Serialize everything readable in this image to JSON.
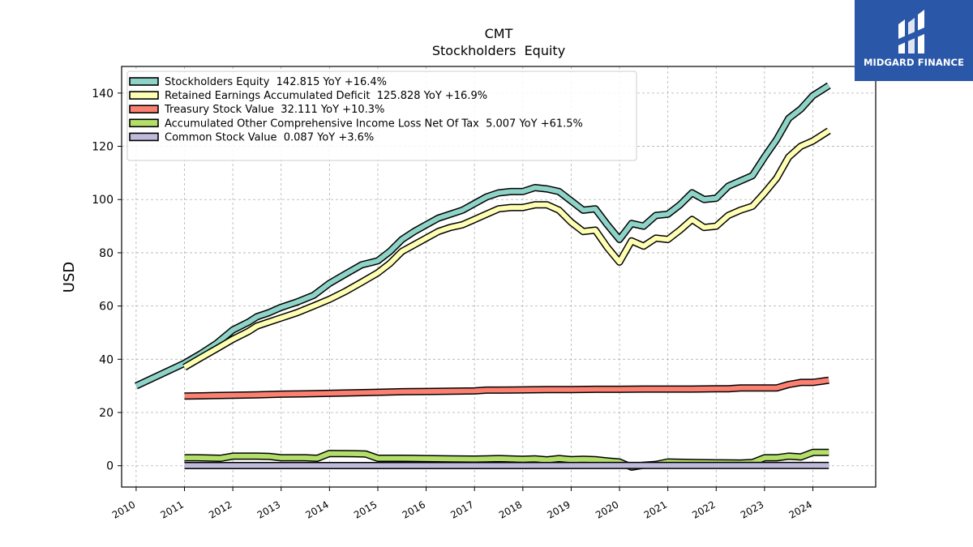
{
  "brand": {
    "name": "MIDGARD FINANCE",
    "bg_color": "#2a57a8"
  },
  "chart_data": {
    "type": "line",
    "title": "CMT",
    "subtitle": "Stockholders  Equity",
    "xlabel": "",
    "ylabel": "USD",
    "xlim": [
      2009.7,
      2025.3
    ],
    "ylim": [
      -8,
      150
    ],
    "yticks": [
      0,
      20,
      40,
      60,
      80,
      100,
      120,
      140
    ],
    "xticks": [
      2010,
      2011,
      2012,
      2013,
      2014,
      2015,
      2016,
      2017,
      2018,
      2019,
      2020,
      2021,
      2022,
      2023,
      2024
    ],
    "grid": true,
    "legend_position": "top-left",
    "series": [
      {
        "name": "Stockholders Equity",
        "legend": "Stockholders Equity  142.815 YoY +16.4%",
        "color": "#8dd3c7",
        "points": [
          [
            2010.0,
            30.0
          ],
          [
            2011.0,
            38.5
          ],
          [
            2011.33,
            42.0
          ],
          [
            2011.67,
            46.0
          ],
          [
            2012.0,
            51.0
          ],
          [
            2012.33,
            54.0
          ],
          [
            2012.5,
            56.0
          ],
          [
            2012.75,
            57.5
          ],
          [
            2013.0,
            59.5
          ],
          [
            2013.33,
            61.5
          ],
          [
            2013.67,
            64.0
          ],
          [
            2014.0,
            68.5
          ],
          [
            2014.33,
            72.0
          ],
          [
            2014.67,
            75.5
          ],
          [
            2014.9,
            76.5
          ],
          [
            2015.0,
            77.0
          ],
          [
            2015.25,
            80.5
          ],
          [
            2015.5,
            85.0
          ],
          [
            2015.75,
            88.0
          ],
          [
            2016.0,
            90.5
          ],
          [
            2016.25,
            93.0
          ],
          [
            2016.5,
            94.5
          ],
          [
            2016.75,
            96.0
          ],
          [
            2017.0,
            98.5
          ],
          [
            2017.25,
            101.0
          ],
          [
            2017.5,
            102.5
          ],
          [
            2017.75,
            103.0
          ],
          [
            2018.0,
            103.0
          ],
          [
            2018.25,
            104.5
          ],
          [
            2018.5,
            104.0
          ],
          [
            2018.75,
            103.0
          ],
          [
            2019.0,
            99.5
          ],
          [
            2019.25,
            96.0
          ],
          [
            2019.5,
            96.5
          ],
          [
            2019.75,
            90.5
          ],
          [
            2020.0,
            85.0
          ],
          [
            2020.25,
            91.0
          ],
          [
            2020.5,
            90.0
          ],
          [
            2020.75,
            94.0
          ],
          [
            2021.0,
            94.5
          ],
          [
            2021.25,
            98.0
          ],
          [
            2021.5,
            102.5
          ],
          [
            2021.75,
            100.0
          ],
          [
            2022.0,
            100.5
          ],
          [
            2022.25,
            105.0
          ],
          [
            2022.5,
            107.0
          ],
          [
            2022.75,
            109.0
          ],
          [
            2023.0,
            116.0
          ],
          [
            2023.25,
            122.5
          ],
          [
            2023.5,
            130.5
          ],
          [
            2023.75,
            134.0
          ],
          [
            2024.0,
            139.0
          ],
          [
            2024.33,
            142.815
          ]
        ]
      },
      {
        "name": "Retained Earnings Accumulated Deficit",
        "legend": "Retained Earnings Accumulated Deficit  125.828 YoY +16.9%",
        "color": "#ffffb3",
        "points": [
          [
            2011.0,
            37.0
          ],
          [
            2011.33,
            40.5
          ],
          [
            2011.67,
            44.0
          ],
          [
            2012.0,
            47.5
          ],
          [
            2012.33,
            50.5
          ],
          [
            2012.5,
            52.5
          ],
          [
            2012.75,
            54.0
          ],
          [
            2013.0,
            55.5
          ],
          [
            2013.33,
            57.5
          ],
          [
            2013.67,
            60.0
          ],
          [
            2014.0,
            62.5
          ],
          [
            2014.33,
            65.5
          ],
          [
            2014.67,
            69.0
          ],
          [
            2015.0,
            72.5
          ],
          [
            2015.25,
            76.0
          ],
          [
            2015.5,
            80.5
          ],
          [
            2015.75,
            83.0
          ],
          [
            2016.0,
            85.5
          ],
          [
            2016.25,
            88.0
          ],
          [
            2016.5,
            89.5
          ],
          [
            2016.75,
            90.5
          ],
          [
            2017.0,
            92.5
          ],
          [
            2017.25,
            94.5
          ],
          [
            2017.5,
            96.5
          ],
          [
            2017.75,
            97.0
          ],
          [
            2018.0,
            97.0
          ],
          [
            2018.25,
            98.0
          ],
          [
            2018.5,
            98.0
          ],
          [
            2018.75,
            96.0
          ],
          [
            2019.0,
            91.5
          ],
          [
            2019.25,
            88.0
          ],
          [
            2019.5,
            88.5
          ],
          [
            2019.75,
            82.0
          ],
          [
            2020.0,
            76.5
          ],
          [
            2020.25,
            84.5
          ],
          [
            2020.5,
            82.5
          ],
          [
            2020.75,
            85.5
          ],
          [
            2021.0,
            85.0
          ],
          [
            2021.25,
            88.5
          ],
          [
            2021.5,
            92.5
          ],
          [
            2021.75,
            89.5
          ],
          [
            2022.0,
            90.0
          ],
          [
            2022.25,
            94.0
          ],
          [
            2022.5,
            96.0
          ],
          [
            2022.75,
            97.5
          ],
          [
            2023.0,
            102.5
          ],
          [
            2023.25,
            108.0
          ],
          [
            2023.5,
            116.0
          ],
          [
            2023.75,
            120.0
          ],
          [
            2024.0,
            122.0
          ],
          [
            2024.33,
            125.828
          ]
        ]
      },
      {
        "name": "Treasury Stock Value",
        "legend": "Treasury Stock Value  32.111 YoY +10.3%",
        "color": "#fb8072",
        "points": [
          [
            2011.0,
            26.2
          ],
          [
            2011.5,
            26.3
          ],
          [
            2012.0,
            26.5
          ],
          [
            2012.5,
            26.6
          ],
          [
            2013.0,
            26.9
          ],
          [
            2013.5,
            27.0
          ],
          [
            2014.0,
            27.2
          ],
          [
            2014.5,
            27.4
          ],
          [
            2015.0,
            27.6
          ],
          [
            2015.5,
            27.8
          ],
          [
            2016.0,
            27.9
          ],
          [
            2016.5,
            28.0
          ],
          [
            2017.0,
            28.1
          ],
          [
            2017.25,
            28.4
          ],
          [
            2017.5,
            28.4
          ],
          [
            2018.0,
            28.5
          ],
          [
            2018.5,
            28.6
          ],
          [
            2019.0,
            28.6
          ],
          [
            2019.5,
            28.7
          ],
          [
            2020.0,
            28.7
          ],
          [
            2020.5,
            28.8
          ],
          [
            2021.0,
            28.8
          ],
          [
            2021.5,
            28.8
          ],
          [
            2022.0,
            28.9
          ],
          [
            2022.25,
            28.9
          ],
          [
            2022.5,
            29.2
          ],
          [
            2023.0,
            29.2
          ],
          [
            2023.25,
            29.2
          ],
          [
            2023.5,
            30.5
          ],
          [
            2023.75,
            31.3
          ],
          [
            2024.0,
            31.3
          ],
          [
            2024.33,
            32.111
          ]
        ]
      },
      {
        "name": "Accumulated Other Comprehensive Income Loss Net Of Tax",
        "legend": "Accumulated Other Comprehensive Income Loss Net Of Tax  5.007 YoY +61.5%",
        "color": "#b3de69",
        "points": [
          [
            2011.0,
            3.0
          ],
          [
            2011.25,
            3.0
          ],
          [
            2011.75,
            2.8
          ],
          [
            2012.0,
            3.6
          ],
          [
            2012.5,
            3.6
          ],
          [
            2012.75,
            3.5
          ],
          [
            2013.0,
            3.0
          ],
          [
            2013.5,
            3.0
          ],
          [
            2013.75,
            2.8
          ],
          [
            2014.0,
            4.6
          ],
          [
            2014.5,
            4.5
          ],
          [
            2014.75,
            4.4
          ],
          [
            2015.0,
            2.8
          ],
          [
            2015.5,
            2.8
          ],
          [
            2016.0,
            2.7
          ],
          [
            2016.5,
            2.6
          ],
          [
            2017.0,
            2.5
          ],
          [
            2017.25,
            2.6
          ],
          [
            2017.5,
            2.7
          ],
          [
            2018.0,
            2.4
          ],
          [
            2018.25,
            2.6
          ],
          [
            2018.5,
            2.2
          ],
          [
            2018.75,
            2.7
          ],
          [
            2019.0,
            2.3
          ],
          [
            2019.25,
            2.4
          ],
          [
            2019.5,
            2.3
          ],
          [
            2019.75,
            1.8
          ],
          [
            2020.0,
            1.4
          ],
          [
            2020.25,
            -0.5
          ],
          [
            2020.5,
            0.2
          ],
          [
            2020.75,
            0.5
          ],
          [
            2021.0,
            1.4
          ],
          [
            2021.5,
            1.2
          ],
          [
            2022.0,
            1.1
          ],
          [
            2022.5,
            1.0
          ],
          [
            2022.75,
            1.2
          ],
          [
            2023.0,
            3.0
          ],
          [
            2023.25,
            3.0
          ],
          [
            2023.5,
            3.6
          ],
          [
            2023.75,
            3.3
          ],
          [
            2024.0,
            5.0
          ],
          [
            2024.33,
            5.007
          ]
        ]
      },
      {
        "name": "Common Stock Value",
        "legend": "Common Stock Value  0.087 YoY +3.6%",
        "color": "#bebada",
        "points": [
          [
            2011.0,
            0.08
          ],
          [
            2024.33,
            0.087
          ]
        ]
      }
    ]
  }
}
